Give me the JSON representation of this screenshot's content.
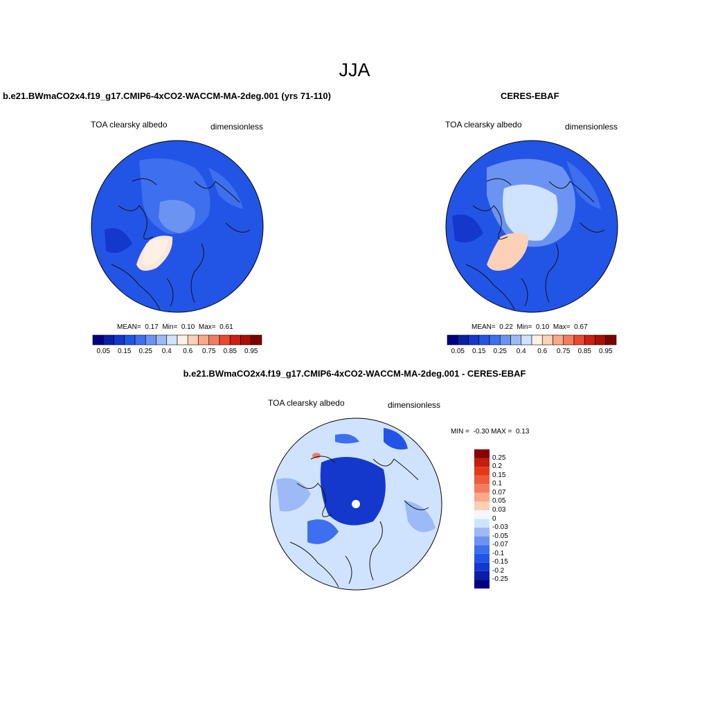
{
  "figure": {
    "season": "JJA",
    "colors": {
      "ocean_blue": "#2255e6",
      "ice_light": "#cfe3ff",
      "greenland": "#ffe6d6",
      "coast": "#111111"
    }
  },
  "panels": [
    {
      "title": "b.e21.BWmaCO2x4.f19_g17.CMIP6-4xCO2-WACCM-MA-2deg.001 (yrs 71-110)",
      "variable": "TOA clearsky albedo",
      "units": "dimensionless",
      "stats": {
        "mean_label": "MEAN=",
        "mean": "0.17",
        "min_label": "Min=",
        "min": "0.10",
        "max_label": "Max=",
        "max": "0.61"
      }
    },
    {
      "title": "CERES-EBAF",
      "variable": "TOA clearsky albedo",
      "units": "dimensionless",
      "stats": {
        "mean_label": "MEAN=",
        "mean": "0.22",
        "min_label": "Min=",
        "min": "0.10",
        "max_label": "Max=",
        "max": "0.67"
      }
    },
    {
      "title": "b.e21.BWmaCO2x4.f19_g17.CMIP6-4xCO2-WACCM-MA-2deg.001 - CERES-EBAF",
      "variable": "TOA clearsky albedo",
      "units": "dimensionless",
      "stats": {
        "min_label": "MIN =",
        "min": "-0.30",
        "max_label": "MAX =",
        "max": "0.13"
      }
    }
  ],
  "colorbar_abs": {
    "colors": [
      "#000080",
      "#0a1fa8",
      "#1437cc",
      "#2255e6",
      "#3d6fee",
      "#6b94f2",
      "#9dbaf6",
      "#cfe3ff",
      "#fff0e6",
      "#fdd0b8",
      "#f9a98a",
      "#f47c5e",
      "#e84a30",
      "#cc2010",
      "#a80f05",
      "#7d0000"
    ],
    "labels": [
      "0.05",
      "0.15",
      "0.25",
      "0.4",
      "0.6",
      "0.75",
      "0.85",
      "0.95"
    ]
  },
  "colorbar_diff": {
    "colors": [
      "#000080",
      "#0a1fa8",
      "#1437cc",
      "#2255e6",
      "#3d6fee",
      "#6b94f2",
      "#9dbaf6",
      "#cfe3ff",
      "#f5f7ff",
      "#fdd0b8",
      "#f9a98a",
      "#f47c5e",
      "#ee5a3a",
      "#e03a1c",
      "#c41e0c",
      "#8a0000"
    ],
    "labels": [
      "-0.25",
      "-0.2",
      "-0.15",
      "-0.1",
      "-0.07",
      "-0.05",
      "-0.03",
      "0",
      "0.03",
      "0.05",
      "0.07",
      "0.1",
      "0.15",
      "0.2",
      "0.25"
    ]
  }
}
